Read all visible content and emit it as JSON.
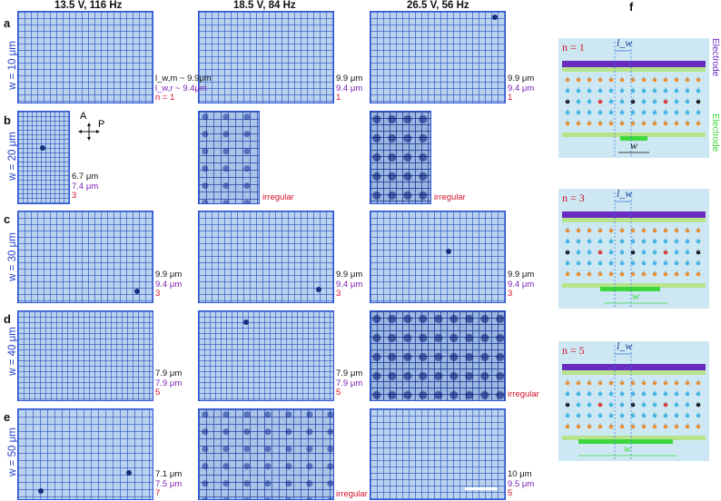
{
  "column_headers": [
    "13.5 V, 116 Hz",
    "18.5 V, 84 Hz",
    "26.5 V, 56 Hz"
  ],
  "panel_f_label": "f",
  "rows": [
    {
      "letter": "a",
      "w_label": "w = 10 μm",
      "cells": [
        {
          "lines": [
            "l_w,m ~ 9.9μm",
            "l_w,r ~ 9.4μm",
            "n = 1"
          ]
        },
        {
          "lines": [
            "9.9 μm",
            "9.4 μm",
            "1"
          ]
        },
        {
          "lines": [
            "9.9 μm",
            "9.4 μm",
            "1"
          ]
        }
      ]
    },
    {
      "letter": "b",
      "w_label": "w = 20 μm",
      "cells": [
        {
          "lines": [
            "6.7 μm",
            "7.4 μm",
            "3"
          ]
        },
        {
          "irregular": "irregular"
        },
        {
          "irregular": "irregular"
        }
      ]
    },
    {
      "letter": "c",
      "w_label": "w = 30 μm",
      "cells": [
        {
          "lines": [
            "9.9 μm",
            "9.4 μm",
            "3"
          ]
        },
        {
          "lines": [
            "9.9 μm",
            "9.4 μm",
            "3"
          ]
        },
        {
          "lines": [
            "9.9 μm",
            "9.4 μm",
            "3"
          ]
        }
      ]
    },
    {
      "letter": "d",
      "w_label": "w = 40 μm",
      "cells": [
        {
          "lines": [
            "7.9 μm",
            "7.9 μm",
            "5"
          ]
        },
        {
          "lines": [
            "7.9 μm",
            "7.9 μm",
            "5"
          ]
        },
        {
          "irregular": "irregular"
        }
      ]
    },
    {
      "letter": "e",
      "w_label": "w = 50 μm",
      "cells": [
        {
          "lines": [
            "7.1 μm",
            "7.5 μm",
            "7"
          ]
        },
        {
          "irregular": "irregular"
        },
        {
          "lines": [
            "10 μm",
            "9.5 μm",
            "5"
          ]
        }
      ]
    }
  ],
  "polarizer": {
    "a": "A",
    "p": "P"
  },
  "schematics": [
    {
      "n_label": "n = 1",
      "lw": "l_w",
      "w": "w"
    },
    {
      "n_label": "n = 3",
      "lw": "l_w",
      "w": "w"
    },
    {
      "n_label": "n = 5",
      "lw": "l_w",
      "w": "w"
    }
  ],
  "electrode_label": "Electrode",
  "colors": {
    "image_border": "#2b53d8",
    "measure_black": "#111111",
    "measure_purple": "#7a1fb0",
    "measure_red": "#d3122a",
    "electrode_top": "#6a2cc0",
    "electrode_bottom": "#3dd83d",
    "cell_fill": "#cde8f3"
  }
}
